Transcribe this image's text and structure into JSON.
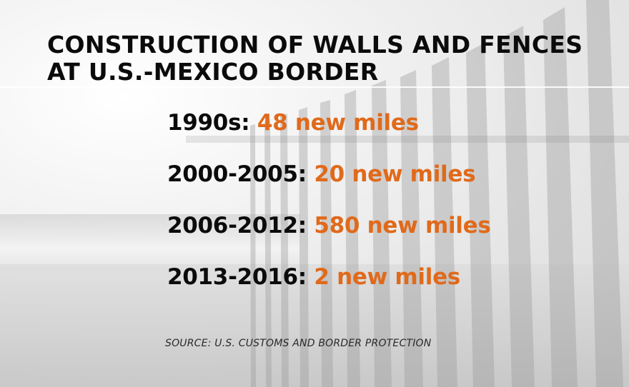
{
  "title": {
    "line1": "CONSTRUCTION OF WALLS AND FENCES",
    "line2": "AT U.S.-MEXICO BORDER"
  },
  "stats": [
    {
      "period": "1990s:",
      "value": "48 new miles"
    },
    {
      "period": "2000-2005:",
      "value": "20 new miles"
    },
    {
      "period": "2006-2012:",
      "value": "580 new miles"
    },
    {
      "period": "2013-2016:",
      "value": "2 new miles"
    }
  ],
  "source": "SOURCE: U.S. CUSTOMS AND BORDER PROTECTION",
  "colors": {
    "period_text": "#0b0b0b",
    "value_text": "#e06a1b",
    "title_text": "#0b0b0b"
  }
}
